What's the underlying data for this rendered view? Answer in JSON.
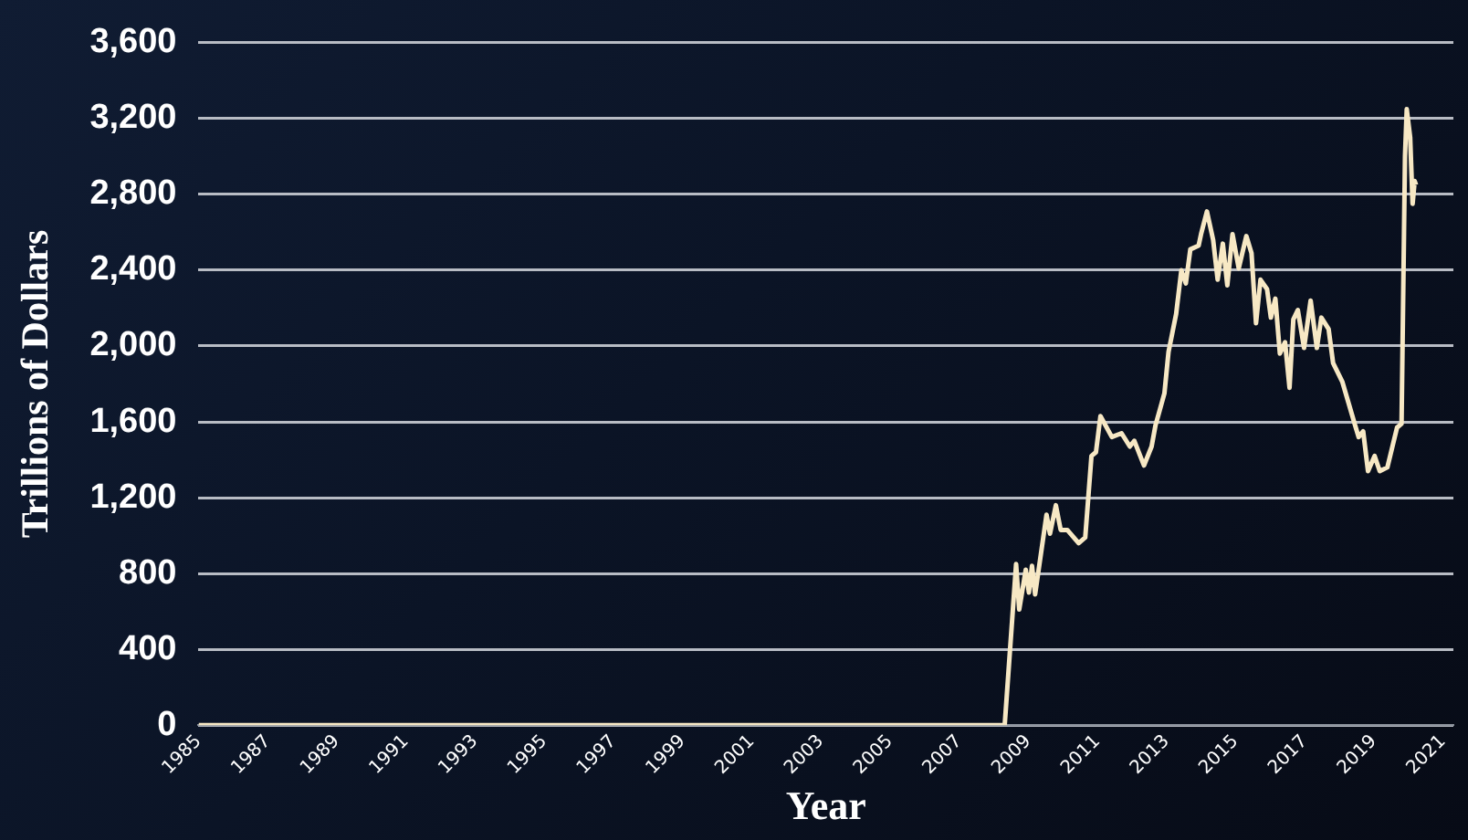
{
  "chart_data": {
    "type": "line",
    "xlabel": "Year",
    "ylabel": "Trillions of Dollars",
    "x": [
      1985,
      2008.32,
      2008.65,
      2008.74,
      2008.93,
      2009.02,
      2009.11,
      2009.2,
      2009.53,
      2009.63,
      2009.8,
      2009.94,
      2010.13,
      2010.46,
      2010.65,
      2010.83,
      2010.96,
      2011.09,
      2011.42,
      2011.7,
      2011.94,
      2012.07,
      2012.35,
      2012.57,
      2012.68,
      2012.94,
      2013.06,
      2013.28,
      2013.43,
      2013.56,
      2013.69,
      2013.93,
      2014.0,
      2014.17,
      2014.35,
      2014.48,
      2014.63,
      2014.76,
      2014.91,
      2015.09,
      2015.31,
      2015.46,
      2015.59,
      2015.72,
      2015.91,
      2016.02,
      2016.15,
      2016.28,
      2016.43,
      2016.56,
      2016.67,
      2016.8,
      2016.98,
      2017.17,
      2017.35,
      2017.48,
      2017.69,
      2017.82,
      2018.09,
      2018.46,
      2018.56,
      2018.69,
      2018.83,
      2019.02,
      2019.17,
      2019.39,
      2019.67,
      2019.8,
      2019.9,
      2019.95,
      2020.05,
      2020.12,
      2020.18,
      2020.22
    ],
    "series": [
      {
        "color": "#f7e8c4",
        "values": [
          0,
          0,
          850,
          610,
          820,
          700,
          840,
          690,
          1110,
          1010,
          1160,
          1030,
          1030,
          960,
          990,
          1420,
          1440,
          1630,
          1520,
          1540,
          1470,
          1500,
          1370,
          1470,
          1580,
          1750,
          1970,
          2170,
          2400,
          2330,
          2510,
          2530,
          2590,
          2710,
          2560,
          2350,
          2540,
          2320,
          2590,
          2410,
          2580,
          2490,
          2120,
          2350,
          2300,
          2150,
          2250,
          1960,
          2020,
          1780,
          2140,
          2190,
          1990,
          2240,
          1990,
          2150,
          2090,
          1910,
          1810,
          1580,
          1520,
          1550,
          1340,
          1420,
          1340,
          1360,
          1570,
          1590,
          3000,
          3250,
          3100,
          2750,
          2870,
          2850
        ]
      }
    ],
    "xlim": [
      1985,
      2021.3
    ],
    "xticks": [
      1985,
      1987,
      1989,
      1991,
      1993,
      1995,
      1997,
      1999,
      2001,
      2003,
      2005,
      2007,
      2009,
      2011,
      2013,
      2015,
      2017,
      2019,
      2021
    ],
    "ylim": [
      0,
      3600
    ],
    "yticks": [
      0,
      {
        "value": 400,
        "label": "400"
      },
      {
        "value": 800,
        "label": "800"
      },
      {
        "value": 1200,
        "label": "1,200"
      },
      {
        "value": 1600,
        "label": "1,600"
      },
      {
        "value": 2000,
        "label": "2,000"
      },
      {
        "value": 2400,
        "label": "2,400"
      },
      {
        "value": 2800,
        "label": "2,800"
      },
      {
        "value": 3200,
        "label": "3,200"
      },
      {
        "value": 3600,
        "label": "3,600"
      }
    ],
    "grid": "y",
    "legend": false,
    "marker": "none",
    "line_style": "solid"
  }
}
